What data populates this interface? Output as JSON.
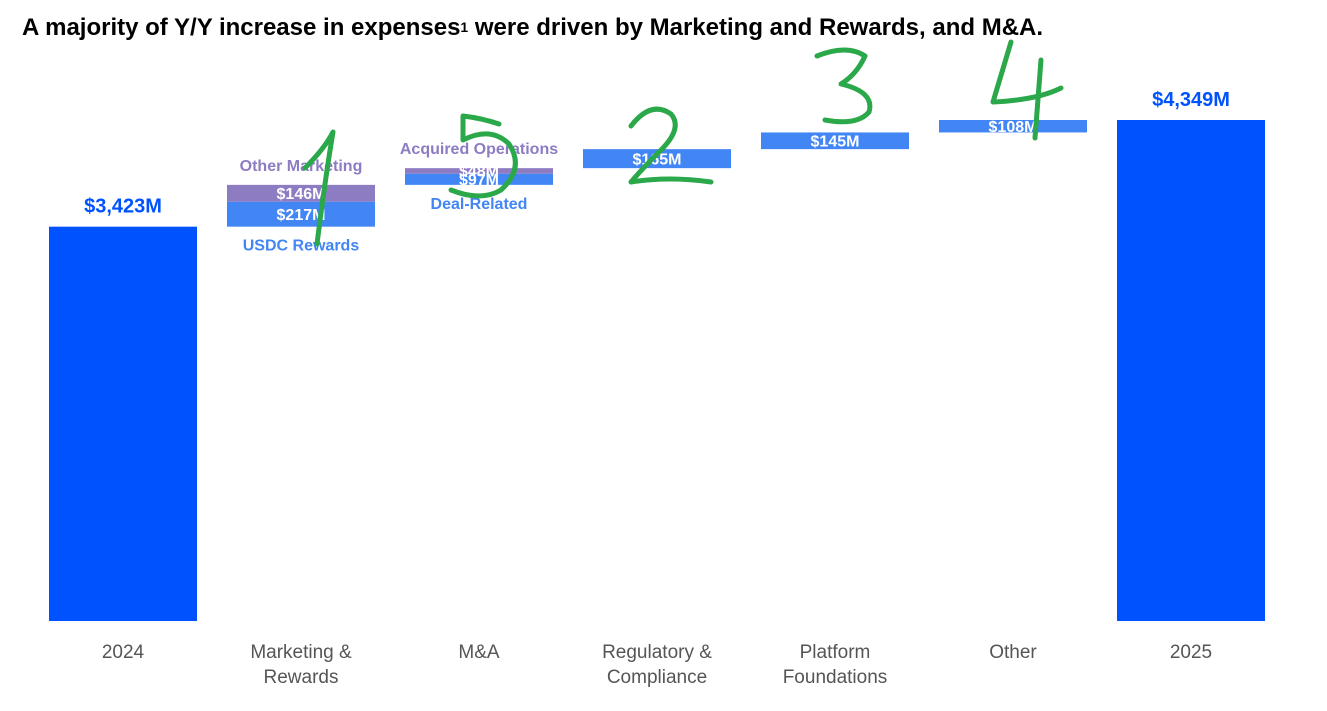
{
  "title": {
    "main": "A majority of Y/Y increase in expenses",
    "superscript": "1",
    "tail": " were driven by Marketing and Rewards, and M&A."
  },
  "colors": {
    "total": "#0052ff",
    "increase": "#4285f4",
    "secondary": "#8e7cc3",
    "category_text": "#555555",
    "handwriting": "#2aa84a"
  },
  "chart_data": {
    "type": "bar",
    "subtype": "waterfall",
    "ylim": [
      0,
      4349
    ],
    "categories": [
      "2024",
      "Marketing & Rewards",
      "M&A",
      "Regulatory & Compliance",
      "Platform Foundations",
      "Other",
      "2025"
    ],
    "category_label_lines": [
      [
        "2024"
      ],
      [
        "Marketing &",
        "Rewards"
      ],
      [
        "M&A"
      ],
      [
        "Regulatory &",
        "Compliance"
      ],
      [
        "Platform",
        "Foundations"
      ],
      [
        "Other"
      ],
      [
        "2025"
      ]
    ],
    "steps": [
      {
        "category": "2024",
        "kind": "total",
        "segments": [
          {
            "name": "",
            "value": 3423,
            "label": "$3,423M"
          }
        ]
      },
      {
        "category": "Marketing & Rewards",
        "kind": "increase",
        "segments": [
          {
            "name": "USDC Rewards",
            "value": 217,
            "label": "$217M"
          },
          {
            "name": "Other Marketing",
            "value": 146,
            "label": "$146M"
          }
        ]
      },
      {
        "category": "M&A",
        "kind": "increase",
        "segments": [
          {
            "name": "Deal-Related",
            "value": 97,
            "label": "$97M"
          },
          {
            "name": "Acquired Operations",
            "value": 48,
            "label": "$48M"
          }
        ]
      },
      {
        "category": "Regulatory & Compliance",
        "kind": "increase",
        "segments": [
          {
            "name": "",
            "value": 165,
            "label": "$165M"
          }
        ]
      },
      {
        "category": "Platform Foundations",
        "kind": "increase",
        "segments": [
          {
            "name": "",
            "value": 145,
            "label": "$145M"
          }
        ]
      },
      {
        "category": "Other",
        "kind": "increase",
        "segments": [
          {
            "name": "",
            "value": 108,
            "label": "$108M"
          }
        ]
      },
      {
        "category": "2025",
        "kind": "total",
        "segments": [
          {
            "name": "",
            "value": 4349,
            "label": "$4,349M"
          }
        ]
      }
    ],
    "annotations": [
      {
        "category": "Marketing & Rewards",
        "segment": "USDC Rewards",
        "text": "USDC Rewards",
        "position": "below"
      },
      {
        "category": "Marketing & Rewards",
        "segment": "Other Marketing",
        "text": "Other Marketing",
        "position": "above"
      },
      {
        "category": "M&A",
        "segment": "Deal-Related",
        "text": "Deal-Related",
        "position": "below"
      },
      {
        "category": "M&A",
        "segment": "Acquired Operations",
        "text": "Acquired Operations",
        "position": "above"
      }
    ],
    "handwritten_marks": [
      {
        "category": "Marketing & Rewards",
        "text": "1"
      },
      {
        "category": "M&A",
        "text": "5"
      },
      {
        "category": "Regulatory & Compliance",
        "text": "2"
      },
      {
        "category": "Platform Foundations",
        "text": "3"
      },
      {
        "category": "Other",
        "text": "4"
      }
    ]
  }
}
